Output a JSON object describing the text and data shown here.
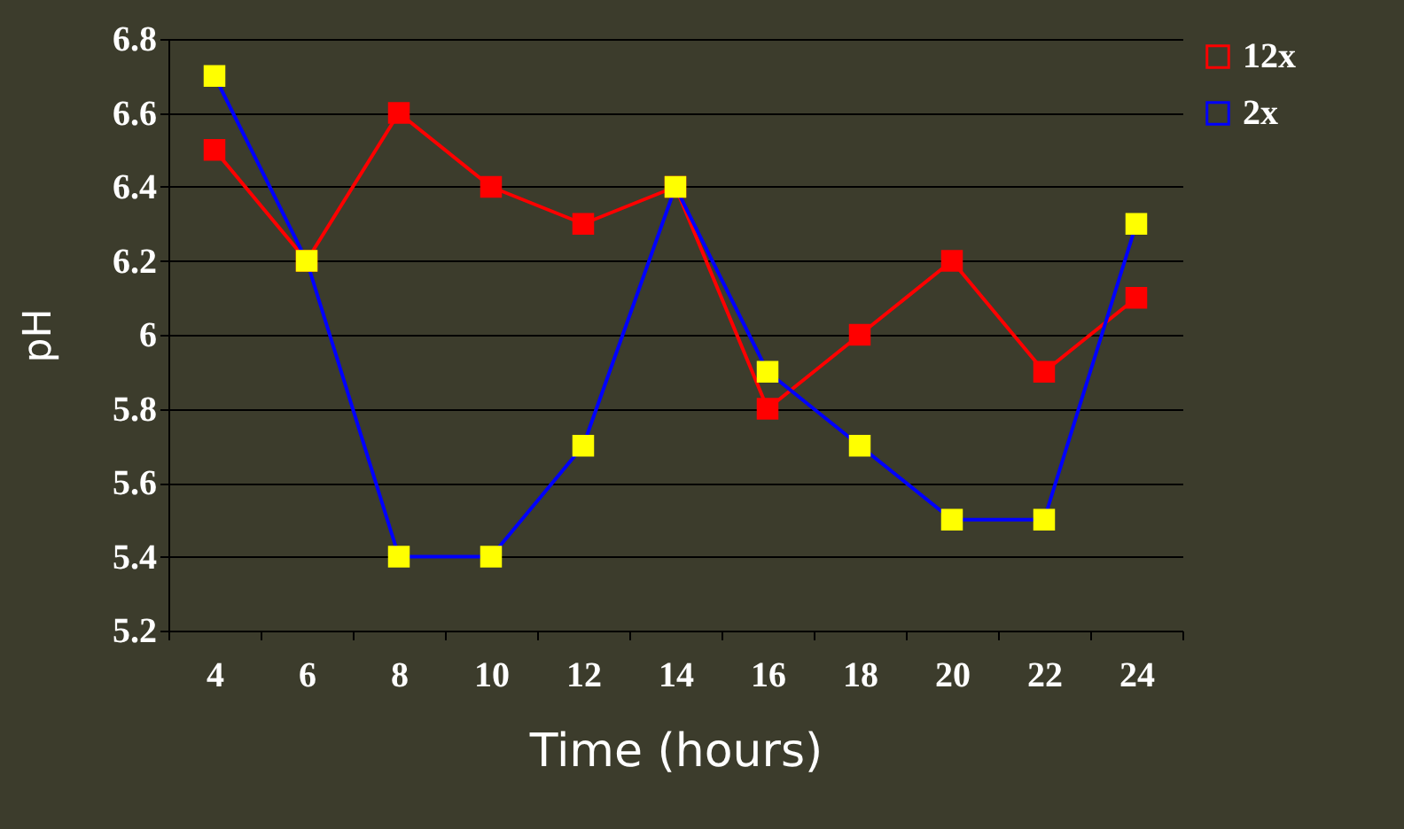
{
  "chart_data": {
    "type": "line",
    "xlabel": "Time (hours)",
    "ylabel": "pH",
    "categories": [
      "4",
      "6",
      "8",
      "10",
      "12",
      "14",
      "16",
      "18",
      "20",
      "22",
      "24"
    ],
    "series": [
      {
        "name": "12x",
        "color": "#ff0000",
        "colors": [
          "#ff0000",
          "#ff0000",
          "#ff0000",
          "#ff0000",
          "#ff0000",
          "#ff0000",
          "#ff0000",
          "#ff0000",
          "#ff0000",
          "#ff0000",
          "#ff0000"
        ],
        "values": [
          6.5,
          6.2,
          6.6,
          6.4,
          6.3,
          6.4,
          5.8,
          6.0,
          6.2,
          5.9,
          6.1
        ]
      },
      {
        "name": "2x",
        "color": "#0000ff",
        "colors": [
          "#ffff00",
          "#ffff00",
          "#ffff00",
          "#ffff00",
          "#ffff00",
          "#ffff00",
          "#ffff00",
          "#ffff00",
          "#ffff00",
          "#ffff00",
          "#ffff00"
        ],
        "values": [
          6.7,
          6.2,
          5.4,
          5.4,
          5.7,
          6.4,
          5.9,
          5.7,
          5.5,
          5.5,
          6.3
        ]
      }
    ],
    "ylim": [
      5.2,
      6.8
    ],
    "yticks": [
      5.2,
      5.4,
      5.6,
      5.8,
      6,
      6.2,
      6.4,
      6.6,
      6.8
    ],
    "grid": "y",
    "legend": "right",
    "marker": "square",
    "line_style": "solid"
  }
}
